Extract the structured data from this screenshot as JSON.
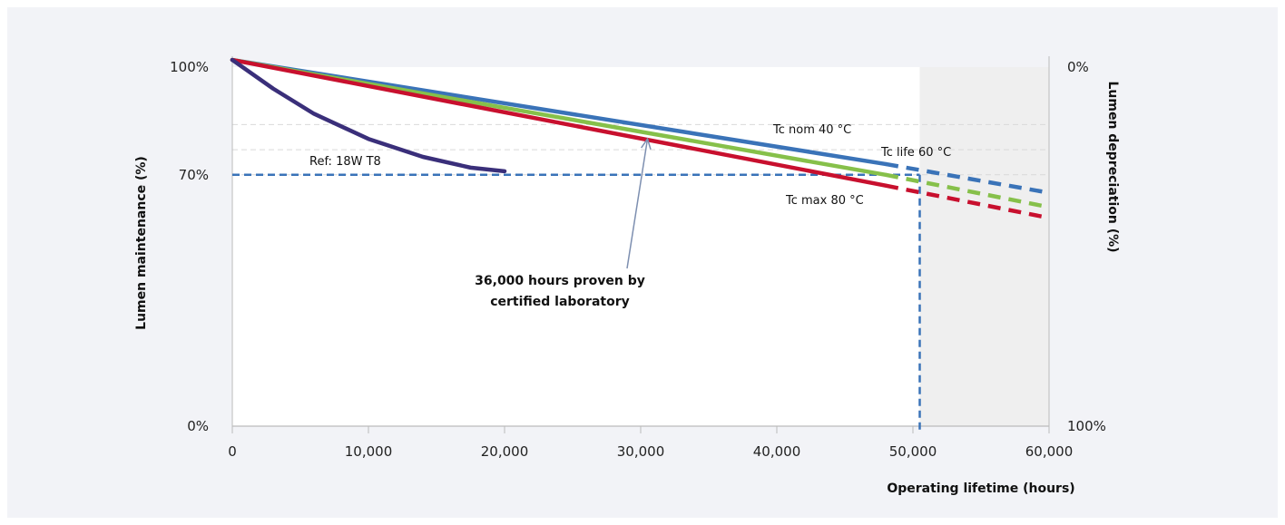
{
  "chart_data": {
    "type": "line",
    "xlabel": "Operating lifetime (hours)",
    "ylabel": "Lumen maintenance (%)",
    "y2label": "Lumen depreciation (%)",
    "xlim": [
      0,
      60000
    ],
    "ylim": [
      0,
      100
    ],
    "x_ticks": [
      "0",
      "10,000",
      "20,000",
      "30,000",
      "40,000",
      "50,000",
      "60,000"
    ],
    "x_tick_values": [
      0,
      10000,
      20000,
      30000,
      40000,
      50000,
      60000
    ],
    "y_ticks": [
      "0%",
      "70%",
      "100%"
    ],
    "y_tick_values": [
      0,
      70,
      100
    ],
    "y2_ticks": [
      "0%",
      "100%"
    ],
    "y2_tick_values": [
      100,
      0
    ],
    "shaded_region_x": [
      50500,
      60000
    ],
    "grid_y": [
      84,
      77
    ],
    "series": [
      {
        "name": "Tc nom 40 °C",
        "color": "#3a73b8",
        "dash_from": 48000,
        "x": [
          0,
          48000,
          60000
        ],
        "y": [
          102,
          73,
          65
        ]
      },
      {
        "name": "Tc life 60 °C",
        "color": "#86c04a",
        "dash_from": 48000,
        "x": [
          0,
          48000,
          60000
        ],
        "y": [
          102,
          70,
          61
        ]
      },
      {
        "name": "Tc max 80 °C",
        "color": "#c8102e",
        "dash_from": 48000,
        "x": [
          0,
          48000,
          60000
        ],
        "y": [
          102,
          67,
          58
        ]
      },
      {
        "name": "Ref: 18W T8",
        "color": "#3a2f7a",
        "dash_from": null,
        "x": [
          0,
          3000,
          6000,
          10000,
          14000,
          17500,
          20000
        ],
        "y": [
          102,
          94,
          87,
          80,
          75,
          72,
          71
        ]
      }
    ],
    "reference_lines": {
      "y": 70,
      "x": 50500
    },
    "annotation": {
      "text_line1": "36,000 hours proven by",
      "text_line2": "certified laboratory",
      "arrow_to_x": 30500,
      "arrow_to_y": 80
    }
  }
}
